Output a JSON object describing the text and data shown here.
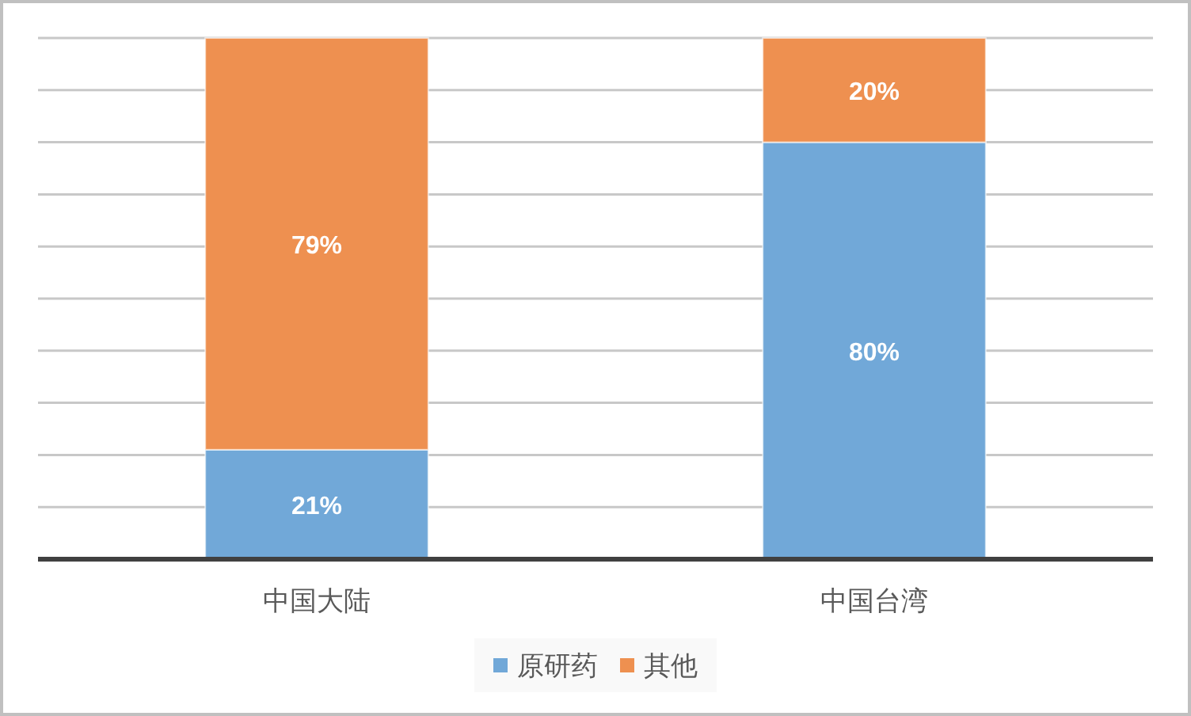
{
  "chart_data": {
    "type": "bar",
    "stacked": true,
    "categories": [
      "中国大陆",
      "中国台湾"
    ],
    "series": [
      {
        "name": "原研药",
        "color": "#71a8d8",
        "values": [
          21,
          80
        ],
        "value_labels": [
          "21%",
          "80%"
        ]
      },
      {
        "name": "其他",
        "color": "#ee9050",
        "values": [
          79,
          20
        ],
        "value_labels": [
          "79%",
          "20%"
        ]
      }
    ],
    "ylim": [
      0,
      100
    ],
    "yticks": [
      {
        "value": 0,
        "label": null
      },
      {
        "value": 10,
        "label": null
      },
      {
        "value": 20,
        "label": null
      },
      {
        "value": 30,
        "label": null
      },
      {
        "value": 40,
        "label": null
      },
      {
        "value": 50,
        "label": null
      },
      {
        "value": 60,
        "label": null
      },
      {
        "value": 70,
        "label": null
      },
      {
        "value": 80,
        "label": null
      },
      {
        "value": 90,
        "label": null
      },
      {
        "value": 100,
        "label": null
      }
    ],
    "tick_labels": "x",
    "grid": "y",
    "legend": "bottom"
  }
}
